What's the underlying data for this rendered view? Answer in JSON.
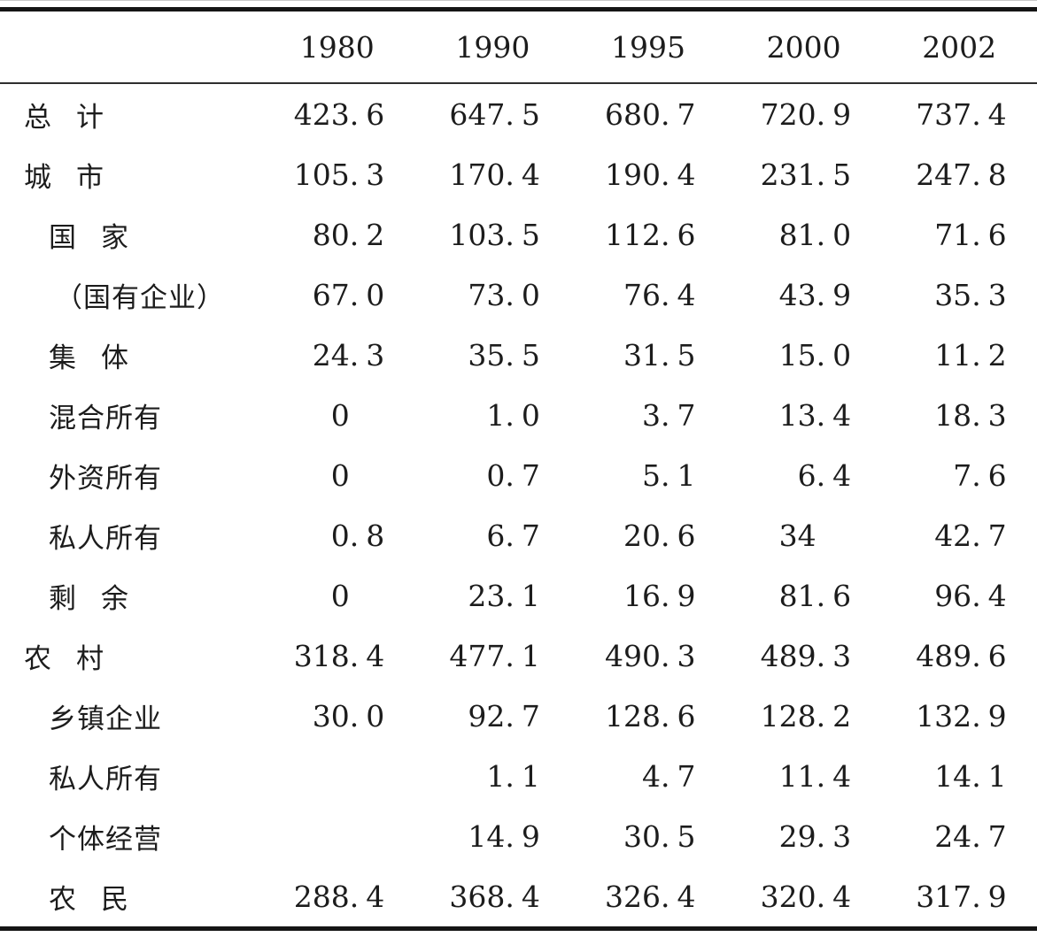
{
  "table": {
    "columns": [
      "1980",
      "1990",
      "1995",
      "2000",
      "2002"
    ],
    "rows": [
      {
        "label": "总计",
        "indent": 0,
        "values": [
          "423.6",
          "647.5",
          "680.7",
          "720.9",
          "737.4"
        ]
      },
      {
        "label": "城市",
        "indent": 0,
        "values": [
          "105.3",
          "170.4",
          "190.4",
          "231.5",
          "247.8"
        ]
      },
      {
        "label": "国家",
        "indent": 1,
        "values": [
          "80.2",
          "103.5",
          "112.6",
          "81.0",
          "71.6"
        ]
      },
      {
        "label": "（国有企业）",
        "indent": 2,
        "values": [
          "67.0",
          "73.0",
          "76.4",
          "43.9",
          "35.3"
        ]
      },
      {
        "label": "集体",
        "indent": 1,
        "values": [
          "24.3",
          "35.5",
          "31.5",
          "15.0",
          "11.2"
        ]
      },
      {
        "label": "混合所有",
        "indent": 1,
        "values": [
          "0",
          "1.0",
          "3.7",
          "13.4",
          "18.3"
        ]
      },
      {
        "label": "外资所有",
        "indent": 1,
        "values": [
          "0",
          "0.7",
          "5.1",
          "6.4",
          "7.6"
        ]
      },
      {
        "label": "私人所有",
        "indent": 1,
        "values": [
          "0.8",
          "6.7",
          "20.6",
          "34",
          "42.7"
        ]
      },
      {
        "label": "剩余",
        "indent": 1,
        "values": [
          "0",
          "23.1",
          "16.9",
          "81.6",
          "96.4"
        ]
      },
      {
        "label": "农村",
        "indent": 0,
        "values": [
          "318.4",
          "477.1",
          "490.3",
          "489.3",
          "489.6"
        ]
      },
      {
        "label": "乡镇企业",
        "indent": 1,
        "values": [
          "30.0",
          "92.7",
          "128.6",
          "128.2",
          "132.9"
        ]
      },
      {
        "label": "私人所有",
        "indent": 1,
        "values": [
          "",
          "1.1",
          "4.7",
          "11.4",
          "14.1"
        ]
      },
      {
        "label": "个体经营",
        "indent": 1,
        "values": [
          "",
          "14.9",
          "30.5",
          "29.3",
          "24.7"
        ]
      },
      {
        "label": "农民",
        "indent": 1,
        "values": [
          "288.4",
          "368.4",
          "326.4",
          "320.4",
          "317.9"
        ]
      }
    ]
  }
}
